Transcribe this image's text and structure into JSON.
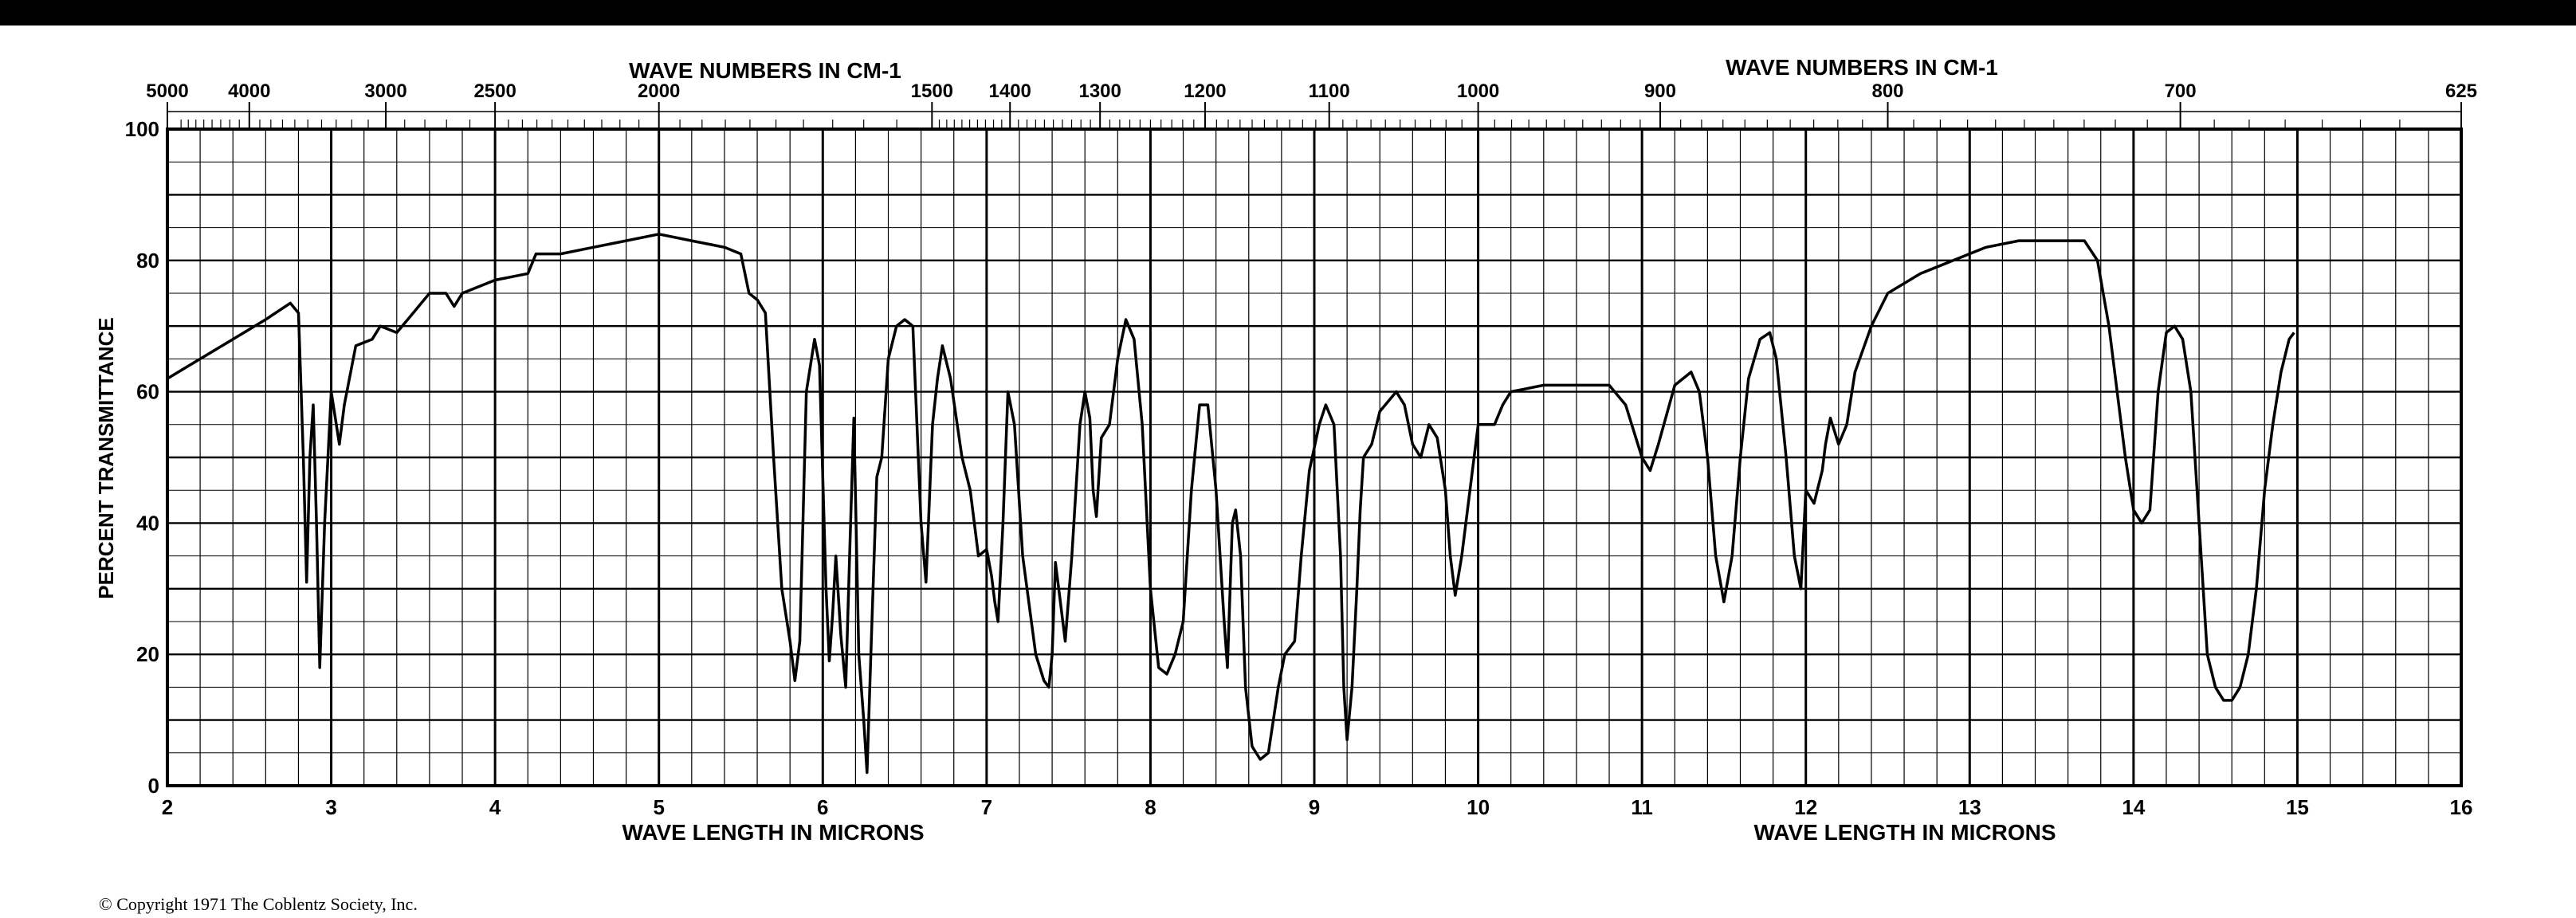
{
  "copyright": "© Copyright 1971   The Coblentz Society, Inc.",
  "chart_data": {
    "type": "line",
    "title": "",
    "top_axis_title_left": "WAVE NUMBERS IN CM-1",
    "top_axis_title_right": "WAVE NUMBERS IN CM-1",
    "bottom_axis_title_left": "WAVE LENGTH IN MICRONS",
    "bottom_axis_title_right": "WAVE LENGTH IN MICRONS",
    "ylabel": "PERCENT TRANSMITTANCE",
    "xlim": [
      2,
      16
    ],
    "ylim": [
      0,
      100
    ],
    "grid": true,
    "x_ticks": [
      "2",
      "3",
      "4",
      "5",
      "6",
      "7",
      "8",
      "9",
      "10",
      "11",
      "12",
      "13",
      "14",
      "15",
      "16"
    ],
    "y_ticks": [
      "0",
      "20",
      "40",
      "60",
      "80",
      "100"
    ],
    "top_ticks": [
      {
        "label": "5000",
        "wn": 5000
      },
      {
        "label": "4000",
        "wn": 4000
      },
      {
        "label": "3000",
        "wn": 3000
      },
      {
        "label": "2500",
        "wn": 2500
      },
      {
        "label": "2000",
        "wn": 2000
      },
      {
        "label": "1500",
        "wn": 1500
      },
      {
        "label": "1400",
        "wn": 1400
      },
      {
        "label": "1300",
        "wn": 1300
      },
      {
        "label": "1200",
        "wn": 1200
      },
      {
        "label": "1100",
        "wn": 1100
      },
      {
        "label": "1000",
        "wn": 1000
      },
      {
        "label": "900",
        "wn": 900
      },
      {
        "label": "800",
        "wn": 800
      },
      {
        "label": "700",
        "wn": 700
      },
      {
        "label": "625",
        "wn": 625
      }
    ],
    "series": [
      {
        "points": [
          [
            2.0,
            62
          ],
          [
            2.2,
            65
          ],
          [
            2.4,
            68
          ],
          [
            2.6,
            71
          ],
          [
            2.75,
            73.5
          ],
          [
            2.8,
            72
          ],
          [
            2.83,
            50
          ],
          [
            2.85,
            31
          ],
          [
            2.87,
            50
          ],
          [
            2.89,
            58
          ],
          [
            2.91,
            40
          ],
          [
            2.93,
            18
          ],
          [
            2.96,
            40
          ],
          [
            3.0,
            60
          ],
          [
            3.05,
            52
          ],
          [
            3.08,
            58
          ],
          [
            3.15,
            67
          ],
          [
            3.25,
            68
          ],
          [
            3.3,
            70
          ],
          [
            3.4,
            69
          ],
          [
            3.5,
            72
          ],
          [
            3.6,
            75
          ],
          [
            3.7,
            75
          ],
          [
            3.75,
            73
          ],
          [
            3.8,
            75
          ],
          [
            4.0,
            77
          ],
          [
            4.2,
            78
          ],
          [
            4.25,
            81
          ],
          [
            4.4,
            81
          ],
          [
            4.6,
            82
          ],
          [
            4.8,
            83
          ],
          [
            5.0,
            84
          ],
          [
            5.2,
            83
          ],
          [
            5.4,
            82
          ],
          [
            5.5,
            81
          ],
          [
            5.55,
            75
          ],
          [
            5.6,
            74
          ],
          [
            5.65,
            72
          ],
          [
            5.7,
            50
          ],
          [
            5.75,
            30
          ],
          [
            5.8,
            22
          ],
          [
            5.83,
            16
          ],
          [
            5.86,
            22
          ],
          [
            5.9,
            60
          ],
          [
            5.95,
            68
          ],
          [
            5.98,
            64
          ],
          [
            6.02,
            30
          ],
          [
            6.04,
            19
          ],
          [
            6.06,
            26
          ],
          [
            6.08,
            35
          ],
          [
            6.11,
            23
          ],
          [
            6.14,
            15
          ],
          [
            6.17,
            40
          ],
          [
            6.19,
            56
          ],
          [
            6.22,
            20
          ],
          [
            6.25,
            10
          ],
          [
            6.27,
            2
          ],
          [
            6.3,
            25
          ],
          [
            6.33,
            47
          ],
          [
            6.36,
            50
          ],
          [
            6.4,
            65
          ],
          [
            6.45,
            70
          ],
          [
            6.5,
            71
          ],
          [
            6.55,
            70
          ],
          [
            6.6,
            40
          ],
          [
            6.63,
            31
          ],
          [
            6.67,
            55
          ],
          [
            6.7,
            62
          ],
          [
            6.73,
            67
          ],
          [
            6.78,
            62
          ],
          [
            6.85,
            50
          ],
          [
            6.9,
            45
          ],
          [
            6.95,
            35
          ],
          [
            7.0,
            36
          ],
          [
            7.03,
            32
          ],
          [
            7.05,
            28
          ],
          [
            7.07,
            25
          ],
          [
            7.1,
            40
          ],
          [
            7.13,
            60
          ],
          [
            7.17,
            55
          ],
          [
            7.22,
            35
          ],
          [
            7.3,
            20
          ],
          [
            7.35,
            16
          ],
          [
            7.38,
            15
          ],
          [
            7.4,
            20
          ],
          [
            7.42,
            34
          ],
          [
            7.45,
            28
          ],
          [
            7.48,
            22
          ],
          [
            7.52,
            35
          ],
          [
            7.57,
            55
          ],
          [
            7.6,
            60
          ],
          [
            7.63,
            56
          ],
          [
            7.65,
            45
          ],
          [
            7.67,
            41
          ],
          [
            7.7,
            53
          ],
          [
            7.75,
            55
          ],
          [
            7.8,
            65
          ],
          [
            7.85,
            71
          ],
          [
            7.9,
            68
          ],
          [
            7.95,
            55
          ],
          [
            8.0,
            30
          ],
          [
            8.05,
            18
          ],
          [
            8.1,
            17
          ],
          [
            8.15,
            20
          ],
          [
            8.2,
            25
          ],
          [
            8.25,
            45
          ],
          [
            8.3,
            58
          ],
          [
            8.35,
            58
          ],
          [
            8.4,
            45
          ],
          [
            8.45,
            25
          ],
          [
            8.47,
            18
          ],
          [
            8.5,
            40
          ],
          [
            8.52,
            42
          ],
          [
            8.55,
            35
          ],
          [
            8.58,
            15
          ],
          [
            8.62,
            6
          ],
          [
            8.67,
            4
          ],
          [
            8.72,
            5
          ],
          [
            8.78,
            15
          ],
          [
            8.82,
            20
          ],
          [
            8.88,
            22
          ],
          [
            8.92,
            35
          ],
          [
            8.97,
            48
          ],
          [
            9.03,
            55
          ],
          [
            9.07,
            58
          ],
          [
            9.12,
            55
          ],
          [
            9.16,
            35
          ],
          [
            9.18,
            15
          ],
          [
            9.2,
            7
          ],
          [
            9.23,
            15
          ],
          [
            9.26,
            30
          ],
          [
            9.28,
            42
          ],
          [
            9.3,
            50
          ],
          [
            9.35,
            52
          ],
          [
            9.4,
            57
          ],
          [
            9.5,
            60
          ],
          [
            9.55,
            58
          ],
          [
            9.6,
            52
          ],
          [
            9.65,
            50
          ],
          [
            9.7,
            55
          ],
          [
            9.75,
            53
          ],
          [
            9.8,
            45
          ],
          [
            9.83,
            35
          ],
          [
            9.86,
            29
          ],
          [
            9.9,
            35
          ],
          [
            9.95,
            45
          ],
          [
            10.0,
            55
          ],
          [
            10.05,
            55
          ],
          [
            10.1,
            55
          ],
          [
            10.15,
            58
          ],
          [
            10.2,
            60
          ],
          [
            10.4,
            61
          ],
          [
            10.6,
            61
          ],
          [
            10.8,
            61
          ],
          [
            10.9,
            58
          ],
          [
            11.0,
            50
          ],
          [
            11.05,
            48
          ],
          [
            11.1,
            52
          ],
          [
            11.2,
            61
          ],
          [
            11.3,
            63
          ],
          [
            11.35,
            60
          ],
          [
            11.4,
            50
          ],
          [
            11.45,
            35
          ],
          [
            11.5,
            28
          ],
          [
            11.55,
            35
          ],
          [
            11.6,
            50
          ],
          [
            11.65,
            62
          ],
          [
            11.72,
            68
          ],
          [
            11.78,
            69
          ],
          [
            11.82,
            65
          ],
          [
            11.88,
            50
          ],
          [
            11.93,
            35
          ],
          [
            11.97,
            30
          ],
          [
            12.0,
            45
          ],
          [
            12.05,
            43
          ],
          [
            12.1,
            48
          ],
          [
            12.12,
            52
          ],
          [
            12.15,
            56
          ],
          [
            12.2,
            52
          ],
          [
            12.25,
            55
          ],
          [
            12.3,
            63
          ],
          [
            12.4,
            70
          ],
          [
            12.5,
            75
          ],
          [
            12.7,
            78
          ],
          [
            12.9,
            80
          ],
          [
            13.1,
            82
          ],
          [
            13.3,
            83
          ],
          [
            13.5,
            83
          ],
          [
            13.7,
            83
          ],
          [
            13.78,
            80
          ],
          [
            13.85,
            70
          ],
          [
            13.9,
            60
          ],
          [
            13.95,
            50
          ],
          [
            14.0,
            42
          ],
          [
            14.05,
            40
          ],
          [
            14.1,
            42
          ],
          [
            14.15,
            60
          ],
          [
            14.2,
            69
          ],
          [
            14.25,
            70
          ],
          [
            14.3,
            68
          ],
          [
            14.35,
            60
          ],
          [
            14.4,
            40
          ],
          [
            14.45,
            20
          ],
          [
            14.5,
            15
          ],
          [
            14.55,
            13
          ],
          [
            14.6,
            13
          ],
          [
            14.65,
            15
          ],
          [
            14.7,
            20
          ],
          [
            14.75,
            30
          ],
          [
            14.8,
            45
          ],
          [
            14.85,
            55
          ],
          [
            14.9,
            63
          ],
          [
            14.95,
            68
          ],
          [
            14.98,
            69
          ]
        ]
      }
    ]
  }
}
